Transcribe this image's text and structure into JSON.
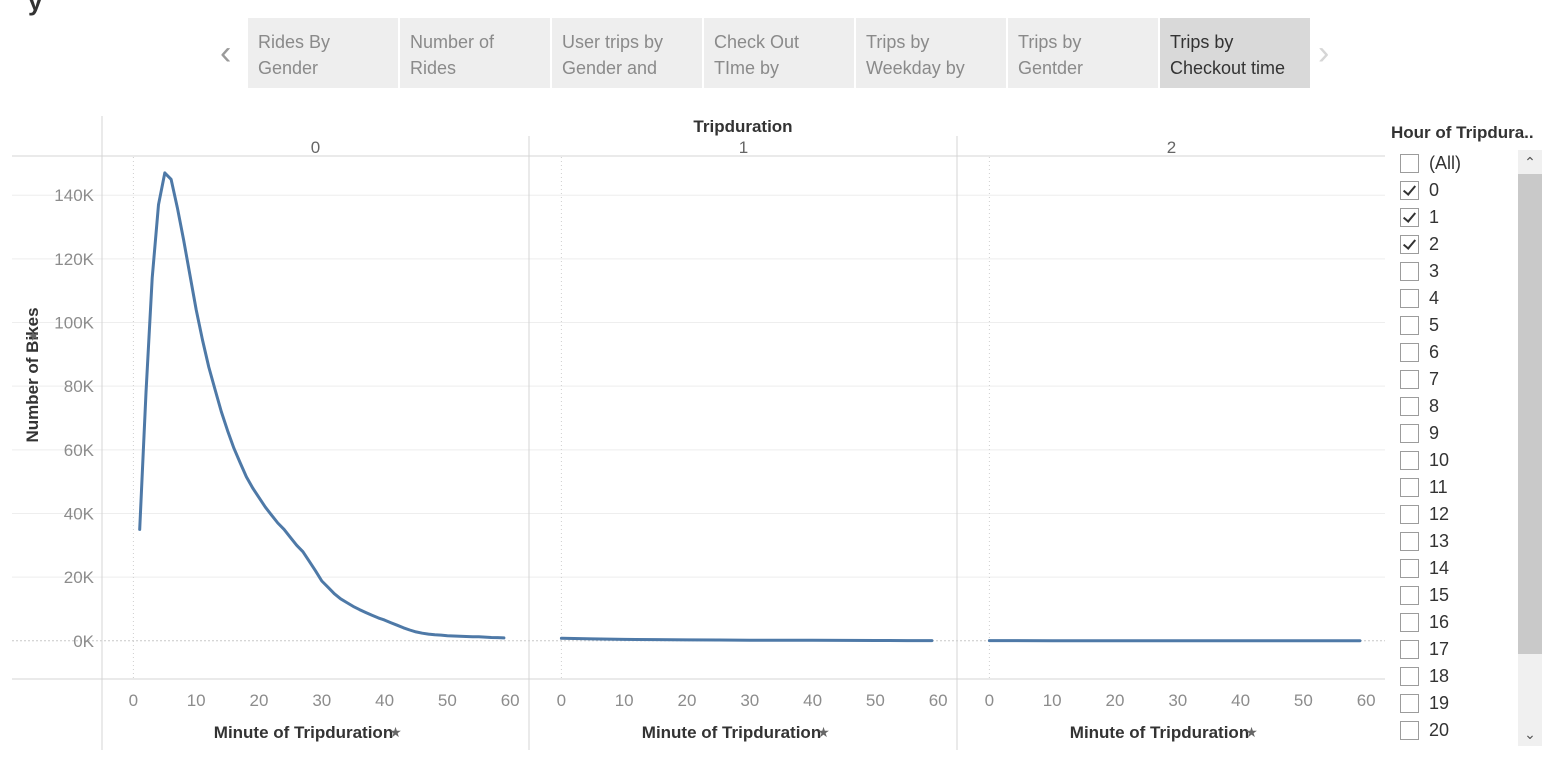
{
  "tabs": {
    "items": [
      {
        "label": "Rides By Gender",
        "active": false
      },
      {
        "label": "Number of Rides",
        "active": false
      },
      {
        "label": "User trips by Gender and",
        "active": false
      },
      {
        "label": "Check Out TIme by",
        "active": false
      },
      {
        "label": "Trips by Weekday by",
        "active": false
      },
      {
        "label": "Trips by Gentder",
        "active": false
      },
      {
        "label": "Trips by Checkout time",
        "active": true
      }
    ],
    "prev_icon": "chevron-left-icon",
    "next_icon": "chevron-right-icon"
  },
  "chart_data": {
    "type": "line",
    "column_header": "Tripduration",
    "panels": [
      "0",
      "1",
      "2"
    ],
    "ylabel": "Number of Bikes",
    "xlabel": "Minute of Tripduration",
    "ylim": [
      -12000,
      152000
    ],
    "xlim": [
      -5,
      63
    ],
    "yticks": [
      0,
      20000,
      40000,
      60000,
      80000,
      100000,
      120000,
      140000
    ],
    "ytick_labels": [
      "0K",
      "20K",
      "40K",
      "60K",
      "80K",
      "100K",
      "120K",
      "140K"
    ],
    "xticks": [
      0,
      10,
      20,
      30,
      40,
      50,
      60
    ],
    "xtick_labels": [
      "0",
      "10",
      "20",
      "30",
      "40",
      "50",
      "60"
    ],
    "line_color": "#4e79a7",
    "series": [
      {
        "panel": "0",
        "x": [
          1,
          2,
          3,
          4,
          5,
          6,
          7,
          8,
          9,
          10,
          11,
          12,
          13,
          14,
          15,
          16,
          17,
          18,
          19,
          20,
          21,
          22,
          23,
          24,
          25,
          26,
          27,
          28,
          29,
          30,
          31,
          32,
          33,
          34,
          35,
          36,
          37,
          38,
          39,
          40,
          41,
          42,
          43,
          44,
          45,
          46,
          47,
          48,
          49,
          50,
          51,
          52,
          53,
          54,
          55,
          56,
          57,
          58,
          59
        ],
        "values": [
          35000,
          78000,
          114000,
          137000,
          147000,
          145000,
          136000,
          126000,
          115000,
          104000,
          94500,
          86000,
          79000,
          72000,
          66000,
          60500,
          56000,
          51500,
          48000,
          45000,
          42000,
          39500,
          37000,
          35000,
          32500,
          30000,
          28000,
          25000,
          22000,
          18800,
          16800,
          14800,
          13200,
          12000,
          10800,
          9800,
          8900,
          8000,
          7200,
          6500,
          5700,
          4900,
          4100,
          3400,
          2800,
          2400,
          2100,
          1900,
          1800,
          1600,
          1500,
          1400,
          1350,
          1300,
          1250,
          1150,
          1050,
          1000,
          900
        ]
      },
      {
        "panel": "1",
        "x": [
          0,
          5,
          10,
          15,
          20,
          25,
          30,
          35,
          40,
          45,
          50,
          55,
          59
        ],
        "values": [
          800,
          600,
          450,
          380,
          300,
          250,
          200,
          170,
          150,
          120,
          100,
          80,
          50
        ]
      },
      {
        "panel": "2",
        "x": [
          0,
          10,
          20,
          30,
          40,
          50,
          59
        ],
        "values": [
          50,
          40,
          35,
          30,
          25,
          20,
          15
        ]
      }
    ]
  },
  "filter": {
    "title": "Hour of Tripdura..",
    "items": [
      {
        "label": "(All)",
        "checked": false
      },
      {
        "label": "0",
        "checked": true
      },
      {
        "label": "1",
        "checked": true
      },
      {
        "label": "2",
        "checked": true
      },
      {
        "label": "3",
        "checked": false
      },
      {
        "label": "4",
        "checked": false
      },
      {
        "label": "5",
        "checked": false
      },
      {
        "label": "6",
        "checked": false
      },
      {
        "label": "7",
        "checked": false
      },
      {
        "label": "8",
        "checked": false
      },
      {
        "label": "9",
        "checked": false
      },
      {
        "label": "10",
        "checked": false
      },
      {
        "label": "11",
        "checked": false
      },
      {
        "label": "12",
        "checked": false
      },
      {
        "label": "13",
        "checked": false
      },
      {
        "label": "14",
        "checked": false
      },
      {
        "label": "15",
        "checked": false
      },
      {
        "label": "16",
        "checked": false
      },
      {
        "label": "17",
        "checked": false
      },
      {
        "label": "18",
        "checked": false
      },
      {
        "label": "19",
        "checked": false
      },
      {
        "label": "20",
        "checked": false
      }
    ]
  }
}
